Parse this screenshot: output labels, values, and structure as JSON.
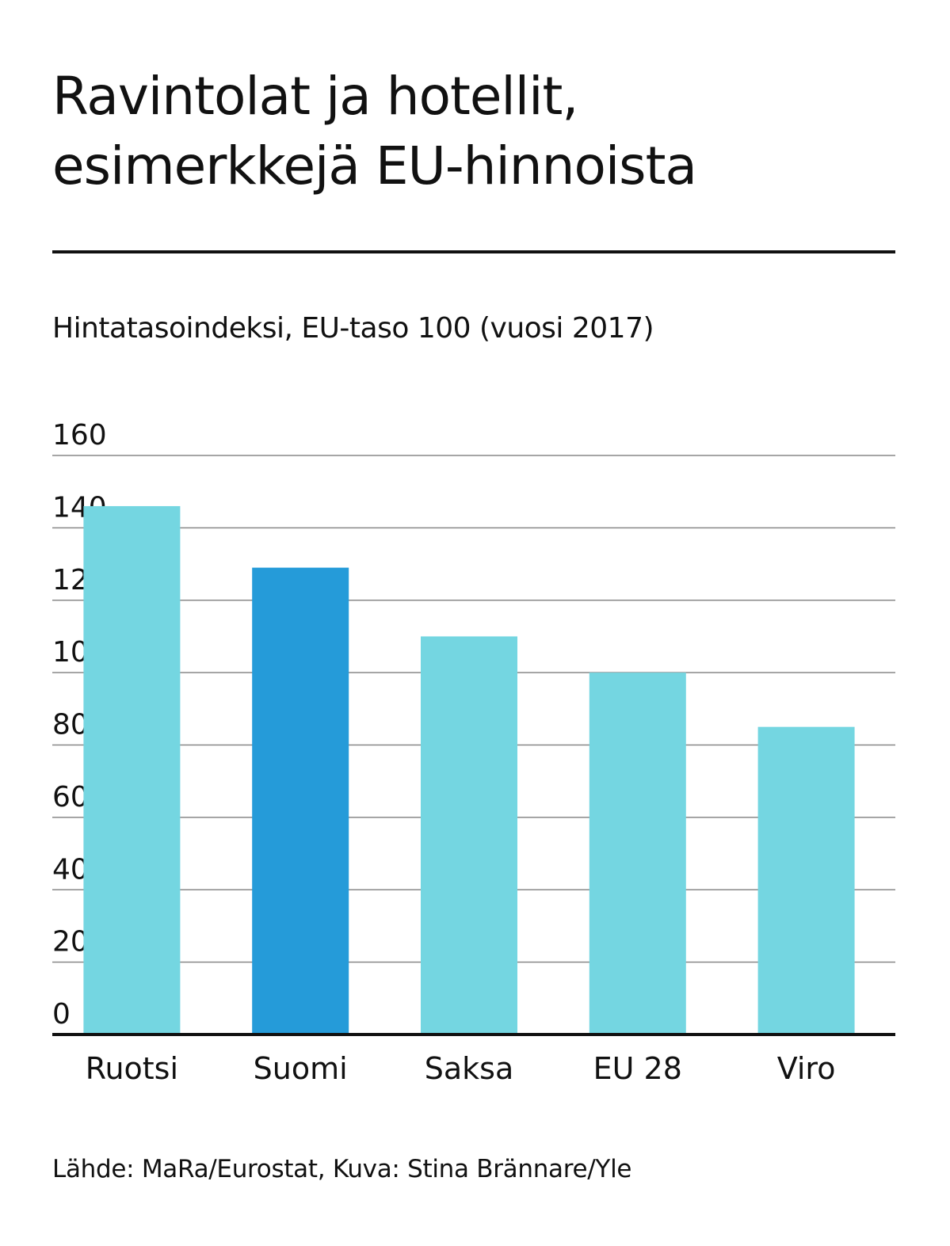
{
  "title_line1": "Ravintolat ja hotellit,",
  "title_line2": "esimerkkejä EU-hinnoista",
  "subtitle": "Hintatasoindeksi, EU-taso 100 (vuosi 2017)",
  "source": "Lähde: MaRa/Eurostat, Kuva: Stina Brännare/Yle",
  "colors": {
    "bar": "#74d6e1",
    "highlight": "#259bd9",
    "grid": "#888888",
    "axis": "#111111",
    "text": "#111111"
  },
  "chart_data": {
    "type": "bar",
    "categories": [
      "Ruotsi",
      "Suomi",
      "Saksa",
      "EU 28",
      "Viro"
    ],
    "values": [
      146,
      129,
      110,
      100,
      85
    ],
    "highlight": "Suomi",
    "ylim": [
      0,
      160
    ],
    "yticks": [
      0,
      20,
      40,
      60,
      80,
      100,
      120,
      140,
      160
    ],
    "grid": true,
    "xlabel": "",
    "ylabel": ""
  }
}
